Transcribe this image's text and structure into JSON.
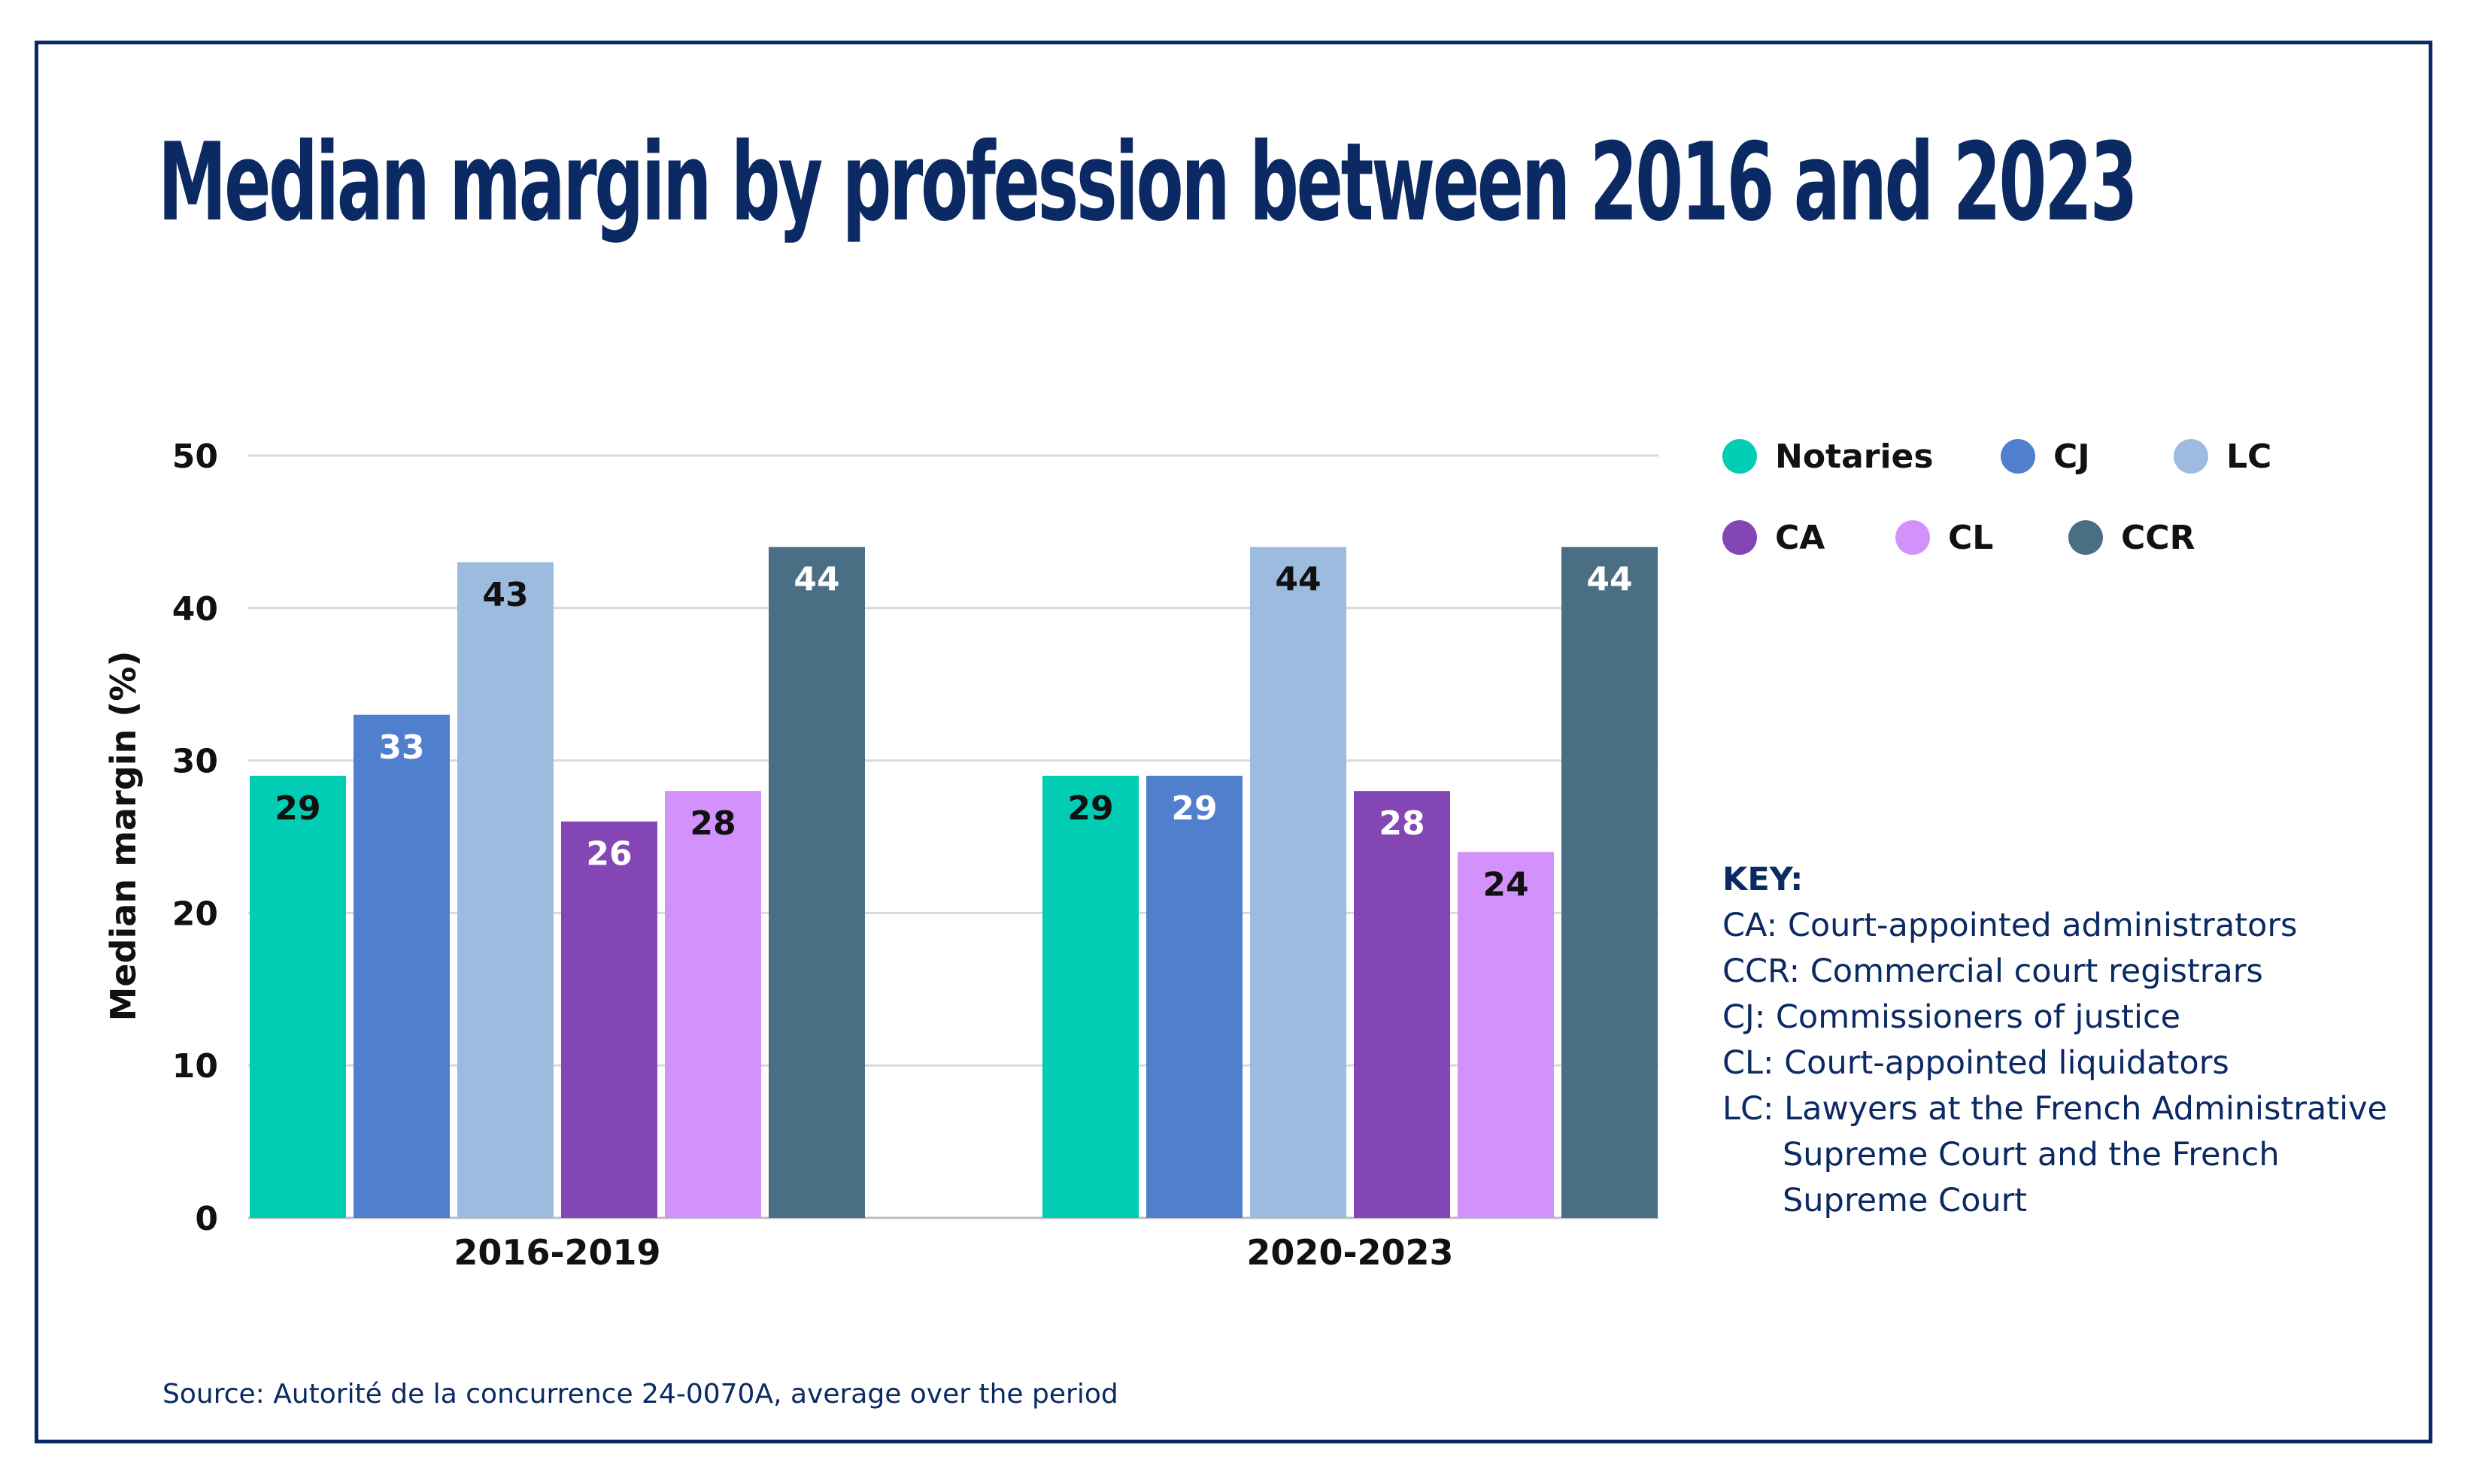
{
  "title": "Median margin by profession between 2016 and 2023",
  "source": "Source: Autorité de la concurrence 24-0070A, average over the period",
  "colors": {
    "frame": "#0b2a63",
    "title": "#0b2a63",
    "gridline": "#d9d9d9",
    "axis_text": "#111111"
  },
  "chart_data": {
    "type": "bar",
    "title": "Median margin by profession between 2016 and 2023",
    "xlabel": "",
    "ylabel": "Median margin (%)",
    "ylim": [
      0,
      50
    ],
    "yticks": [
      0,
      10,
      20,
      30,
      40,
      50
    ],
    "grid": true,
    "legend_position": "top-right",
    "categories": [
      "2016-2019",
      "2020-2023"
    ],
    "series": [
      {
        "name": "Notaries",
        "color": "#00cdb3",
        "label_color": "#111111",
        "values": [
          29,
          29
        ]
      },
      {
        "name": "CJ",
        "color": "#4f7fcd",
        "label_color": "#ffffff",
        "values": [
          33,
          29
        ]
      },
      {
        "name": "LC",
        "color": "#9cbbde",
        "label_color": "#111111",
        "values": [
          43,
          44
        ]
      },
      {
        "name": "CA",
        "color": "#8446b4",
        "label_color": "#ffffff",
        "values": [
          26,
          28
        ]
      },
      {
        "name": "CL",
        "color": "#d392fb",
        "label_color": "#111111",
        "values": [
          28,
          24
        ]
      },
      {
        "name": "CCR",
        "color": "#4a6e83",
        "label_color": "#ffffff",
        "values": [
          44,
          44
        ]
      }
    ]
  },
  "key": {
    "title": "KEY:",
    "lines": [
      "CA: Court-appointed administrators",
      "CCR: Commercial court registrars",
      "CJ: Commissioners of justice",
      "CL: Court-appointed liquidators",
      "LC: Lawyers at the French Administrative",
      "Supreme Court and the French",
      "Supreme Court"
    ]
  }
}
